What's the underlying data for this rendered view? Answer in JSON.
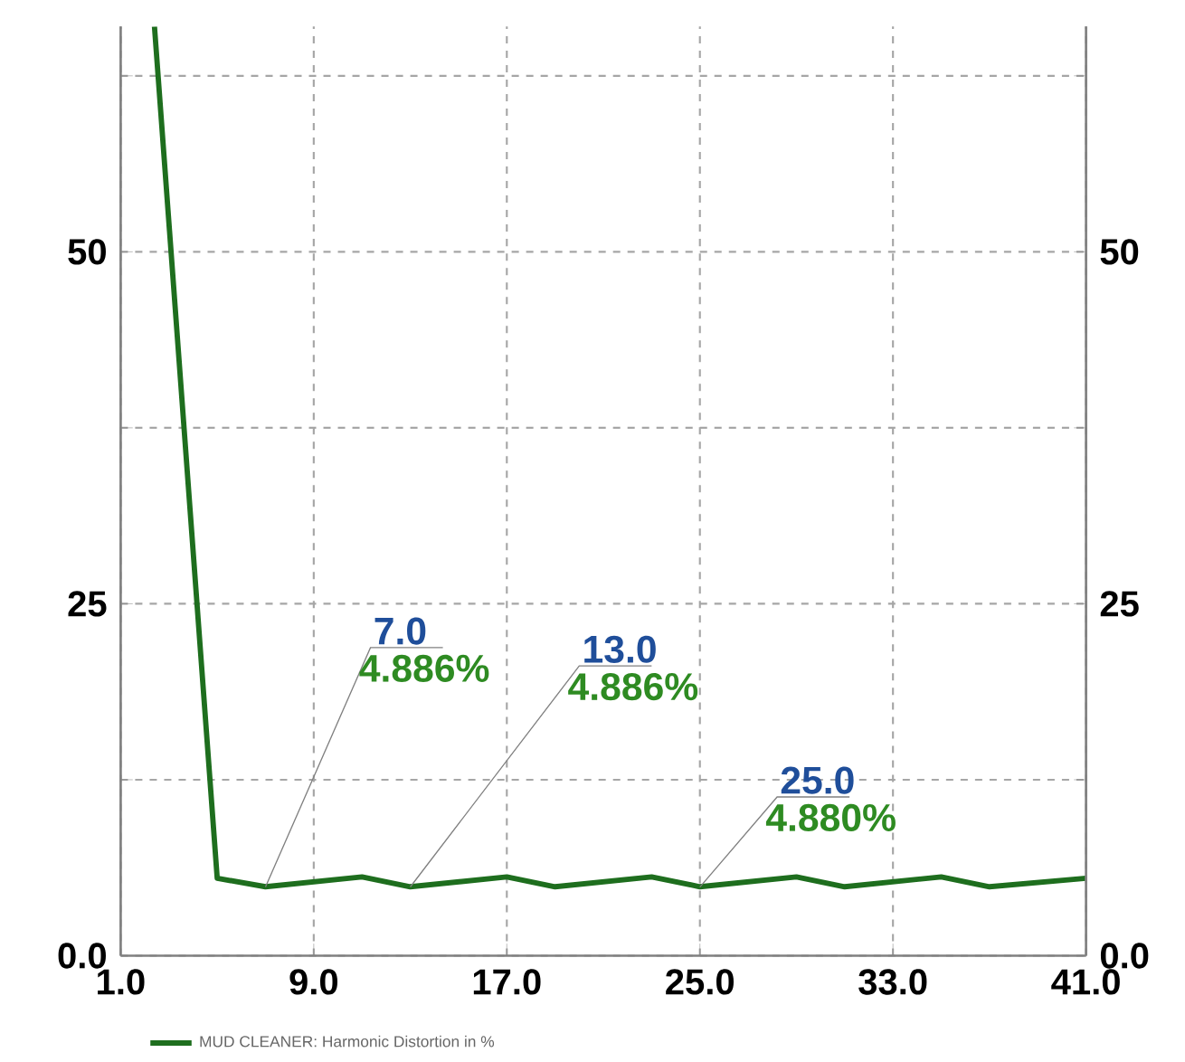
{
  "chart_data": {
    "type": "line",
    "x": [
      2.4,
      5,
      7,
      11,
      13,
      17,
      19,
      23,
      25,
      29,
      31,
      35,
      37,
      41
    ],
    "series": [
      {
        "name": "MUD CLEANER: Harmonic Distortion in %",
        "color": "#1e6e1e",
        "values": [
          66,
          5.5,
          4.9,
          5.6,
          4.9,
          5.6,
          4.9,
          5.6,
          4.9,
          5.6,
          4.9,
          5.6,
          4.9,
          5.5
        ]
      }
    ],
    "xlim": [
      1,
      41
    ],
    "xticks": [
      {
        "value": 1,
        "label": "1.0"
      },
      {
        "value": 9,
        "label": "9.0"
      },
      {
        "value": 17,
        "label": "17.0"
      },
      {
        "value": 25,
        "label": "25.0"
      },
      {
        "value": 33,
        "label": "33.0"
      },
      {
        "value": 41,
        "label": "41.0"
      }
    ],
    "ylim": [
      0,
      66
    ],
    "yticks": [
      {
        "value": 0,
        "label": "0.0"
      },
      {
        "value": 12.5,
        "label": null
      },
      25,
      {
        "value": 37.5,
        "label": null
      },
      50,
      {
        "value": 62.5,
        "label": null
      }
    ],
    "y2lim": [
      0,
      66
    ],
    "y2ticks": [
      {
        "value": 0,
        "label": "0.0"
      },
      {
        "value": 12.5,
        "label": null
      },
      25,
      {
        "value": 37.5,
        "label": null
      },
      50,
      {
        "value": 62.5,
        "label": null
      }
    ],
    "grid": true,
    "legend": "bottom",
    "marker": "none",
    "line_style": "solid",
    "annotations": [
      {
        "text": "7.0",
        "x": 7,
        "y": 4.886
      },
      {
        "text": "4.886%",
        "x": 7,
        "y": 4.886
      },
      {
        "text": "13.0",
        "x": 13,
        "y": 4.886
      },
      {
        "text": "4.886%",
        "x": 13,
        "y": 4.886
      },
      {
        "text": "25.0",
        "x": 25,
        "y": 4.88
      },
      {
        "text": "4.880%",
        "x": 25,
        "y": 4.88
      }
    ]
  }
}
